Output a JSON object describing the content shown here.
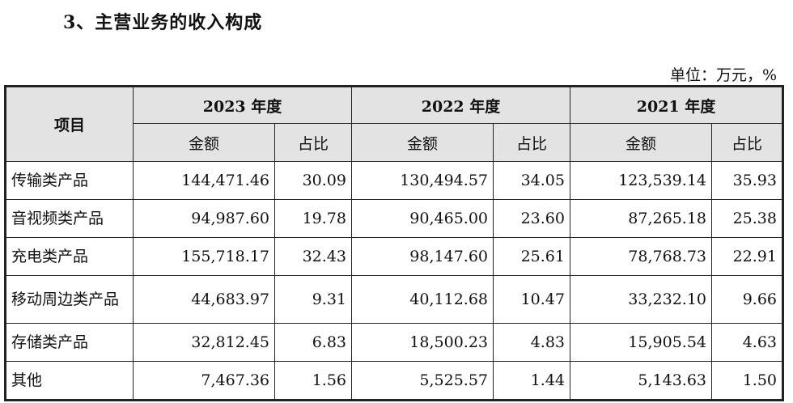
{
  "heading": "3、主营业务的收入构成",
  "unit": "单位：万元，%",
  "table": {
    "item_header": "项目",
    "years": [
      "2023 年度",
      "2022 年度",
      "2021 年度"
    ],
    "amount_label": "金额",
    "share_label": "占比",
    "rows": [
      {
        "name": "传输类产品",
        "values": [
          "144,471.46",
          "30.09",
          "130,494.57",
          "34.05",
          "123,539.14",
          "35.93"
        ]
      },
      {
        "name": "音视频类产品",
        "values": [
          "94,987.60",
          "19.78",
          "90,465.00",
          "23.60",
          "87,265.18",
          "25.38"
        ]
      },
      {
        "name": "充电类产品",
        "values": [
          "155,718.17",
          "32.43",
          "98,147.60",
          "25.61",
          "78,768.73",
          "22.91"
        ]
      },
      {
        "name": "移动周边类产品",
        "values": [
          "44,683.97",
          "9.31",
          "40,112.68",
          "10.47",
          "33,232.10",
          "9.66"
        ]
      },
      {
        "name": "存储类产品",
        "values": [
          "32,812.45",
          "6.83",
          "18,500.23",
          "4.83",
          "15,905.54",
          "4.63"
        ]
      },
      {
        "name": "其他",
        "values": [
          "7,467.36",
          "1.56",
          "5,525.57",
          "1.44",
          "5,143.63",
          "1.50"
        ]
      }
    ]
  }
}
